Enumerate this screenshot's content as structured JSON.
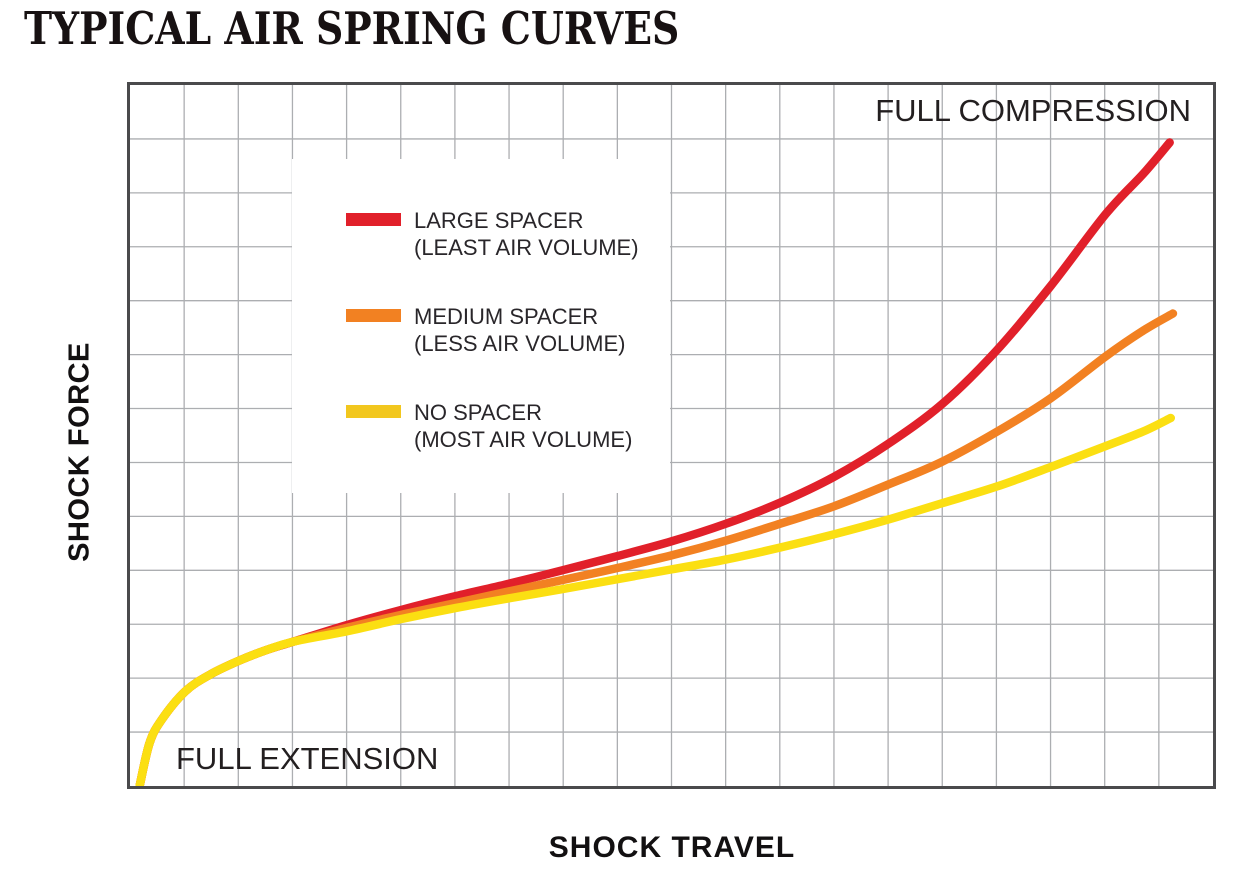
{
  "title": "TYPICAL AIR SPRING CURVES",
  "axis": {
    "x_label": "SHOCK TRAVEL",
    "y_label": "SHOCK FORCE"
  },
  "annotations": {
    "top_right": "FULL COMPRESSION",
    "bottom_left": "FULL EXTENSION"
  },
  "colors": {
    "red": "#E1202A",
    "orange": "#F28122",
    "yellow": "#FBDF12",
    "legend_yellow_swatch": "#F2C71E",
    "grid": "#ACAEB1",
    "border": "#4A4A4C",
    "text": "#231F20"
  },
  "chart_data": {
    "type": "line",
    "title": "TYPICAL AIR SPRING CURVES",
    "xlabel": "SHOCK TRAVEL",
    "ylabel": "SHOCK FORCE",
    "x_axis": {
      "numeric_ticks": false,
      "min_label": "FULL EXTENSION",
      "max_label": "FULL COMPRESSION"
    },
    "y_axis": {
      "numeric_ticks": false
    },
    "grid": {
      "visible": true,
      "cols": 20,
      "rows": 13
    },
    "legend": {
      "position": "inset-upper-left"
    },
    "curve_stroke_width": 8.5,
    "series": [
      {
        "name": "LARGE SPACER",
        "subtitle": "(LEAST AIR VOLUME)",
        "color": "#E1202A",
        "swatch_color": "#E1202A",
        "points": [
          [
            0.009,
            0.001
          ],
          [
            0.018,
            0.061
          ],
          [
            0.029,
            0.094
          ],
          [
            0.051,
            0.135
          ],
          [
            0.074,
            0.159
          ],
          [
            0.101,
            0.179
          ],
          [
            0.126,
            0.194
          ],
          [
            0.151,
            0.206
          ],
          [
            0.201,
            0.23
          ],
          [
            0.25,
            0.251
          ],
          [
            0.301,
            0.271
          ],
          [
            0.351,
            0.289
          ],
          [
            0.4,
            0.308
          ],
          [
            0.45,
            0.328
          ],
          [
            0.5,
            0.349
          ],
          [
            0.55,
            0.374
          ],
          [
            0.6,
            0.404
          ],
          [
            0.65,
            0.441
          ],
          [
            0.7,
            0.488
          ],
          [
            0.75,
            0.545
          ],
          [
            0.8,
            0.621
          ],
          [
            0.85,
            0.713
          ],
          [
            0.901,
            0.816
          ],
          [
            0.936,
            0.874
          ],
          [
            0.96,
            0.918
          ]
        ]
      },
      {
        "name": "MEDIUM SPACER",
        "subtitle": "(LESS AIR VOLUME)",
        "color": "#F28122",
        "swatch_color": "#F28122",
        "points": [
          [
            0.009,
            0.001
          ],
          [
            0.018,
            0.061
          ],
          [
            0.029,
            0.094
          ],
          [
            0.051,
            0.135
          ],
          [
            0.074,
            0.159
          ],
          [
            0.101,
            0.179
          ],
          [
            0.126,
            0.194
          ],
          [
            0.151,
            0.206
          ],
          [
            0.201,
            0.226
          ],
          [
            0.25,
            0.244
          ],
          [
            0.301,
            0.261
          ],
          [
            0.351,
            0.278
          ],
          [
            0.4,
            0.294
          ],
          [
            0.45,
            0.311
          ],
          [
            0.5,
            0.329
          ],
          [
            0.55,
            0.35
          ],
          [
            0.6,
            0.374
          ],
          [
            0.65,
            0.399
          ],
          [
            0.7,
            0.43
          ],
          [
            0.749,
            0.462
          ],
          [
            0.8,
            0.505
          ],
          [
            0.85,
            0.553
          ],
          [
            0.901,
            0.613
          ],
          [
            0.936,
            0.65
          ],
          [
            0.963,
            0.674
          ]
        ]
      },
      {
        "name": "NO SPACER",
        "subtitle": "(MOST AIR VOLUME)",
        "color": "#FBDF12",
        "swatch_color": "#F2C71E",
        "points": [
          [
            0.009,
            0.001
          ],
          [
            0.018,
            0.061
          ],
          [
            0.029,
            0.094
          ],
          [
            0.051,
            0.135
          ],
          [
            0.074,
            0.159
          ],
          [
            0.101,
            0.179
          ],
          [
            0.126,
            0.194
          ],
          [
            0.151,
            0.206
          ],
          [
            0.201,
            0.221
          ],
          [
            0.25,
            0.238
          ],
          [
            0.301,
            0.254
          ],
          [
            0.351,
            0.268
          ],
          [
            0.4,
            0.281
          ],
          [
            0.45,
            0.295
          ],
          [
            0.5,
            0.309
          ],
          [
            0.55,
            0.323
          ],
          [
            0.6,
            0.34
          ],
          [
            0.65,
            0.359
          ],
          [
            0.7,
            0.38
          ],
          [
            0.749,
            0.403
          ],
          [
            0.8,
            0.427
          ],
          [
            0.85,
            0.455
          ],
          [
            0.901,
            0.485
          ],
          [
            0.936,
            0.506
          ],
          [
            0.961,
            0.525
          ]
        ]
      }
    ]
  }
}
